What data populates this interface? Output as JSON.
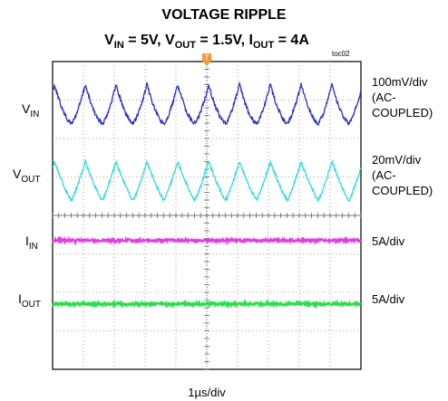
{
  "chart_data": {
    "type": "line",
    "title": "VOLTAGE RIPPLE",
    "subtitle": "V_IN = 5V, V_OUT = 1.5V, I_OUT = 4A",
    "figure_id": "toc02",
    "xlabel": "1µs/div",
    "grid": true,
    "grid_divisions": {
      "x": 10,
      "y": 8
    },
    "trigger_marker": "T",
    "series": [
      {
        "name": "VIN",
        "color": "#2a2fbf",
        "scale": "100mV/div (AC-COUPLED)",
        "waveform": "sawtooth ripple",
        "cycles": 10,
        "peak_to_peak_div": 1.0
      },
      {
        "name": "VOUT",
        "color": "#2fd9e0",
        "scale": "20mV/div (AC-COUPLED)",
        "waveform": "triangular ripple",
        "cycles": 10,
        "peak_to_peak_div": 1.0
      },
      {
        "name": "IIN",
        "color": "#e040e0",
        "scale": "5A/div",
        "waveform": "flat"
      },
      {
        "name": "IOUT",
        "color": "#2adf4a",
        "scale": "5A/div",
        "waveform": "flat"
      }
    ]
  },
  "labels": {
    "title_main": "VOLTAGE RIPPLE",
    "sub_v": "V",
    "sub_in": "IN",
    "sub_eq1": " = 5V, V",
    "sub_out": "OUT",
    "sub_eq2": " = 1.5V, I",
    "sub_iout": "OUT",
    "sub_eq3": " = 4A",
    "toc": "toc02",
    "vin_main": "V",
    "vin_sub": "IN",
    "vout_main": "V",
    "vout_sub": "OUT",
    "iin_main": "I",
    "iin_sub": "IN",
    "iout_main": "I",
    "iout_sub": "OUT",
    "vin_scale_1": "100mV/div",
    "vin_scale_2": "(AC-",
    "vin_scale_3": "COUPLED)",
    "vout_scale_1": "20mV/div",
    "vout_scale_2": "(AC-",
    "vout_scale_3": "COUPLED)",
    "iin_scale": "5A/div",
    "iout_scale": "5A/div",
    "xlabel": "1µs/div",
    "trigger": "T"
  }
}
